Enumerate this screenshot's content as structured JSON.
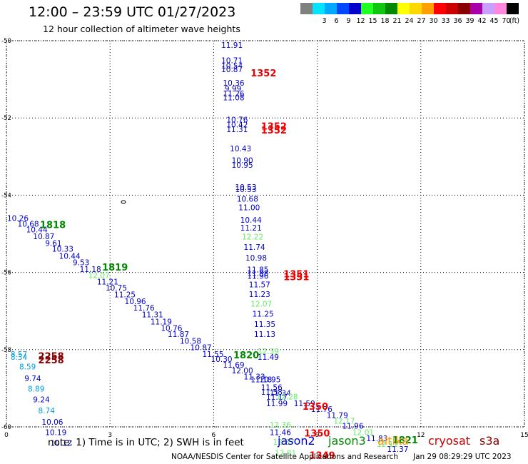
{
  "title": "12:00 – 23:59 UTC 01/27/2023",
  "subtitle": "12 hour collection of altimeter wave heights",
  "legend": {
    "unit": "(ft)",
    "items": [
      {
        "color": "#808080",
        "label": ""
      },
      {
        "color": "#00e4ff",
        "label": "3"
      },
      {
        "color": "#00a8ff",
        "label": "6"
      },
      {
        "color": "#0048ff",
        "label": "9"
      },
      {
        "color": "#0000cc",
        "label": "12"
      },
      {
        "color": "#22ff22",
        "label": "15"
      },
      {
        "color": "#11c611",
        "label": "18"
      },
      {
        "color": "#008800",
        "label": "21"
      },
      {
        "color": "#ffff00",
        "label": "24"
      },
      {
        "color": "#ffd800",
        "label": "27"
      },
      {
        "color": "#ffa000",
        "label": "30"
      },
      {
        "color": "#ff0000",
        "label": "33"
      },
      {
        "color": "#cc0000",
        "label": "36"
      },
      {
        "color": "#880000",
        "label": "39"
      },
      {
        "color": "#aa00aa",
        "label": "42"
      },
      {
        "color": "#c8a0ff",
        "label": "45"
      },
      {
        "color": "#ff88dd",
        "label": "70"
      },
      {
        "color": "#000000",
        "label": ""
      }
    ]
  },
  "axes": {
    "x_ticks": [
      "0",
      "3",
      "6",
      "9",
      "12",
      "15"
    ],
    "y_ticks": [
      "-50",
      "-52",
      "-54",
      "-56",
      "-58",
      "-60"
    ],
    "x_range": [
      0,
      15
    ],
    "y_range": [
      -60,
      -50
    ]
  },
  "colors": {
    "jason2": "#0000cc",
    "jason3": "#008800",
    "altika": "#ff9900",
    "cryosat": "#cc0000",
    "s3a": "#880000",
    "light": "#66ee66",
    "cyan": "#00a0e0",
    "red": "#ee0000"
  },
  "observations": [
    {
      "lon": 6.2,
      "lat": -50.02,
      "v": "11.91",
      "c": "jason2"
    },
    {
      "lon": 6.2,
      "lat": -50.42,
      "v": "10.71",
      "c": "jason2"
    },
    {
      "lon": 6.2,
      "lat": -50.55,
      "v": "10.54",
      "c": "jason2"
    },
    {
      "lon": 6.2,
      "lat": -50.65,
      "v": "10.87",
      "c": "jason2"
    },
    {
      "lon": 6.25,
      "lat": -51.0,
      "v": "10.36",
      "c": "jason2"
    },
    {
      "lon": 6.3,
      "lat": -51.15,
      "v": "9.99",
      "c": "jason2"
    },
    {
      "lon": 6.25,
      "lat": -51.28,
      "v": "11.26",
      "c": "jason2"
    },
    {
      "lon": 6.25,
      "lat": -51.38,
      "v": "11.08",
      "c": "jason2"
    },
    {
      "lon": 6.35,
      "lat": -51.95,
      "v": "10.76",
      "c": "jason2"
    },
    {
      "lon": 6.35,
      "lat": -52.08,
      "v": "10.42",
      "c": "jason2"
    },
    {
      "lon": 6.35,
      "lat": -52.2,
      "v": "11.31",
      "c": "jason2"
    },
    {
      "lon": 6.45,
      "lat": -52.7,
      "v": "10.43",
      "c": "jason2"
    },
    {
      "lon": 6.5,
      "lat": -53.0,
      "v": "10.90",
      "c": "jason2"
    },
    {
      "lon": 6.5,
      "lat": -53.12,
      "v": "10.95",
      "c": "jason2"
    },
    {
      "lon": 6.6,
      "lat": -53.7,
      "v": "10.53",
      "c": "jason2"
    },
    {
      "lon": 6.6,
      "lat": -53.75,
      "v": "10.53",
      "c": "jason2"
    },
    {
      "lon": 6.65,
      "lat": -54.0,
      "v": "10.68",
      "c": "jason2"
    },
    {
      "lon": 6.7,
      "lat": -54.22,
      "v": "11.00",
      "c": "jason2"
    },
    {
      "lon": 6.75,
      "lat": -54.55,
      "v": "10.44",
      "c": "jason2"
    },
    {
      "lon": 6.75,
      "lat": -54.75,
      "v": "11.21",
      "c": "jason2"
    },
    {
      "lon": 6.8,
      "lat": -54.98,
      "v": "12.22",
      "c": "light"
    },
    {
      "lon": 6.85,
      "lat": -55.25,
      "v": "11.74",
      "c": "jason2"
    },
    {
      "lon": 6.9,
      "lat": -55.53,
      "v": "10.98",
      "c": "jason2"
    },
    {
      "lon": 6.95,
      "lat": -55.83,
      "v": "11.85",
      "c": "jason2"
    },
    {
      "lon": 6.95,
      "lat": -55.92,
      "v": "11.88",
      "c": "jason2"
    },
    {
      "lon": 6.95,
      "lat": -56.0,
      "v": "11.96",
      "c": "jason2"
    },
    {
      "lon": 7.0,
      "lat": -56.22,
      "v": "11.57",
      "c": "jason2"
    },
    {
      "lon": 7.0,
      "lat": -56.47,
      "v": "11.23",
      "c": "jason2"
    },
    {
      "lon": 7.05,
      "lat": -56.72,
      "v": "12.07",
      "c": "light"
    },
    {
      "lon": 7.1,
      "lat": -56.98,
      "v": "11.25",
      "c": "jason2"
    },
    {
      "lon": 7.15,
      "lat": -57.25,
      "v": "11.35",
      "c": "jason2"
    },
    {
      "lon": 7.15,
      "lat": -57.5,
      "v": "11.13",
      "c": "jason2"
    },
    {
      "lon": 7.25,
      "lat": -57.95,
      "v": "12.39",
      "c": "light"
    },
    {
      "lon": 7.25,
      "lat": -58.1,
      "v": "11.49",
      "c": "jason2"
    },
    {
      "lon": 0.0,
      "lat": -54.5,
      "v": "10.26",
      "c": "jason2"
    },
    {
      "lon": 0.3,
      "lat": -54.65,
      "v": "10.68",
      "c": "jason2"
    },
    {
      "lon": 0.55,
      "lat": -54.8,
      "v": "10.44",
      "c": "jason2"
    },
    {
      "lon": 0.75,
      "lat": -54.97,
      "v": "10.87",
      "c": "jason2"
    },
    {
      "lon": 1.1,
      "lat": -55.15,
      "v": "9.61",
      "c": "jason2"
    },
    {
      "lon": 1.3,
      "lat": -55.3,
      "v": "10.33",
      "c": "jason2"
    },
    {
      "lon": 1.5,
      "lat": -55.48,
      "v": "10.44",
      "c": "jason2"
    },
    {
      "lon": 1.9,
      "lat": -55.65,
      "v": "9.53",
      "c": "jason2"
    },
    {
      "lon": 2.1,
      "lat": -55.82,
      "v": "11.18",
      "c": "jason2"
    },
    {
      "lon": 2.35,
      "lat": -55.98,
      "v": "12.07",
      "c": "light"
    },
    {
      "lon": 2.6,
      "lat": -56.15,
      "v": "11.21",
      "c": "jason2"
    },
    {
      "lon": 2.85,
      "lat": -56.3,
      "v": "10.75",
      "c": "jason2"
    },
    {
      "lon": 3.1,
      "lat": -56.48,
      "v": "11.25",
      "c": "jason2"
    },
    {
      "lon": 3.4,
      "lat": -56.65,
      "v": "10.96",
      "c": "jason2"
    },
    {
      "lon": 3.65,
      "lat": -56.82,
      "v": "11.76",
      "c": "jason2"
    },
    {
      "lon": 3.9,
      "lat": -57.0,
      "v": "11.31",
      "c": "jason2"
    },
    {
      "lon": 4.15,
      "lat": -57.18,
      "v": "11.19",
      "c": "jason2"
    },
    {
      "lon": 4.45,
      "lat": -57.35,
      "v": "10.76",
      "c": "jason2"
    },
    {
      "lon": 4.65,
      "lat": -57.5,
      "v": "11.87",
      "c": "jason2"
    },
    {
      "lon": 5.0,
      "lat": -57.68,
      "v": "10.58",
      "c": "jason2"
    },
    {
      "lon": 5.3,
      "lat": -57.85,
      "v": "10.87",
      "c": "jason2"
    },
    {
      "lon": 5.65,
      "lat": -58.02,
      "v": "11.55",
      "c": "jason2"
    },
    {
      "lon": 5.9,
      "lat": -58.15,
      "v": "10.30",
      "c": "jason2"
    },
    {
      "lon": 6.25,
      "lat": -58.3,
      "v": "11.69",
      "c": "jason2"
    },
    {
      "lon": 6.5,
      "lat": -58.45,
      "v": "12.00",
      "c": "jason2"
    },
    {
      "lon": 6.85,
      "lat": -58.6,
      "v": "11.33",
      "c": "jason2"
    },
    {
      "lon": 7.05,
      "lat": -58.68,
      "v": "11.18",
      "c": "jason2"
    },
    {
      "lon": 7.3,
      "lat": -58.68,
      "v": "10.95",
      "c": "jason2"
    },
    {
      "lon": 7.35,
      "lat": -58.88,
      "v": "11.56",
      "c": "jason2"
    },
    {
      "lon": 7.35,
      "lat": -59.0,
      "v": "11.58",
      "c": "jason2"
    },
    {
      "lon": 7.6,
      "lat": -59.03,
      "v": "11.34",
      "c": "jason2"
    },
    {
      "lon": 7.5,
      "lat": -59.13,
      "v": "11.17",
      "c": "jason2"
    },
    {
      "lon": 7.8,
      "lat": -59.12,
      "v": "12.28",
      "c": "light"
    },
    {
      "lon": 7.5,
      "lat": -59.3,
      "v": "11.99",
      "c": "jason2"
    },
    {
      "lon": 8.3,
      "lat": -59.3,
      "v": "11.59",
      "c": "jason2"
    },
    {
      "lon": 8.8,
      "lat": -59.45,
      "v": "11.76",
      "c": "jason2"
    },
    {
      "lon": 9.25,
      "lat": -59.6,
      "v": "11.79",
      "c": "jason2"
    },
    {
      "lon": 9.45,
      "lat": -59.75,
      "v": "12.17",
      "c": "light"
    },
    {
      "lon": 9.7,
      "lat": -59.88,
      "v": "11.96",
      "c": "jason2"
    },
    {
      "lon": 10.0,
      "lat": -60.05,
      "v": "12.01",
      "c": "light"
    },
    {
      "lon": 10.4,
      "lat": -60.2,
      "v": "11.83",
      "c": "jason2"
    },
    {
      "lon": 10.7,
      "lat": -60.35,
      "v": "12.11",
      "c": "light"
    },
    {
      "lon": 11.0,
      "lat": -60.48,
      "v": "11.37",
      "c": "jason2"
    },
    {
      "lon": 7.6,
      "lat": -59.85,
      "v": "12.36",
      "c": "light"
    },
    {
      "lon": 7.6,
      "lat": -60.05,
      "v": "11.46",
      "c": "jason2"
    },
    {
      "lon": 7.7,
      "lat": -60.3,
      "v": "12.87",
      "c": "light"
    },
    {
      "lon": 7.75,
      "lat": -60.58,
      "v": "12.81",
      "c": "light"
    },
    {
      "lon": 0.1,
      "lat": -58.02,
      "v": "8.57",
      "c": "cyan"
    },
    {
      "lon": 0.1,
      "lat": -58.1,
      "v": "8.34",
      "c": "cyan"
    },
    {
      "lon": 0.35,
      "lat": -58.35,
      "v": "8.59",
      "c": "cyan"
    },
    {
      "lon": 0.5,
      "lat": -58.65,
      "v": "9.74",
      "c": "jason2"
    },
    {
      "lon": 0.6,
      "lat": -58.92,
      "v": "8.89",
      "c": "cyan"
    },
    {
      "lon": 0.75,
      "lat": -59.2,
      "v": "9.24",
      "c": "jason2"
    },
    {
      "lon": 0.9,
      "lat": -59.48,
      "v": "8.74",
      "c": "cyan"
    },
    {
      "lon": 1.0,
      "lat": -59.78,
      "v": "10.06",
      "c": "jason2"
    },
    {
      "lon": 1.1,
      "lat": -60.05,
      "v": "10.19",
      "c": "jason2"
    },
    {
      "lon": 1.25,
      "lat": -60.32,
      "v": "10.12",
      "c": "jason2"
    }
  ],
  "passes": [
    {
      "lon": 7.05,
      "lat": -50.72,
      "v": "1352",
      "c": "red"
    },
    {
      "lon": 7.35,
      "lat": -52.1,
      "v": "1352",
      "c": "red"
    },
    {
      "lon": 7.35,
      "lat": -52.2,
      "v": "1352",
      "c": "red"
    },
    {
      "lon": 8.0,
      "lat": -55.92,
      "v": "1351",
      "c": "red"
    },
    {
      "lon": 8.0,
      "lat": -56.0,
      "v": "1351",
      "c": "red"
    },
    {
      "lon": 8.55,
      "lat": -59.35,
      "v": "1350",
      "c": "red"
    },
    {
      "lon": 8.6,
      "lat": -60.05,
      "v": "1350",
      "c": "red"
    },
    {
      "lon": 8.75,
      "lat": -60.62,
      "v": "1349",
      "c": "red"
    },
    {
      "lon": 0.95,
      "lat": -54.65,
      "v": "1818",
      "c": "jason3"
    },
    {
      "lon": 2.75,
      "lat": -55.75,
      "v": "1819",
      "c": "jason3"
    },
    {
      "lon": 6.55,
      "lat": -58.02,
      "v": "1820",
      "c": "jason3"
    },
    {
      "lon": 11.15,
      "lat": -60.22,
      "v": "1821",
      "c": "jason3"
    },
    {
      "lon": 0.9,
      "lat": -58.05,
      "v": "2258",
      "c": "s3a"
    },
    {
      "lon": 0.9,
      "lat": -58.15,
      "v": "2258",
      "c": "s3a"
    }
  ],
  "note": "note: 1) Time is in UTC; 2) SWH is in feet",
  "satellites": [
    {
      "name": "jason2",
      "c": "jason2"
    },
    {
      "name": "jason3",
      "c": "jason3"
    },
    {
      "name": "altika",
      "c": "altika"
    },
    {
      "name": "cryosat",
      "c": "cryosat"
    },
    {
      "name": "s3a",
      "c": "s3a"
    }
  ],
  "credit": "NOAA/NESDIS Center for Satellite Applications and Research",
  "timestamp": "Jan 29 08:29:29 UTC 2023"
}
